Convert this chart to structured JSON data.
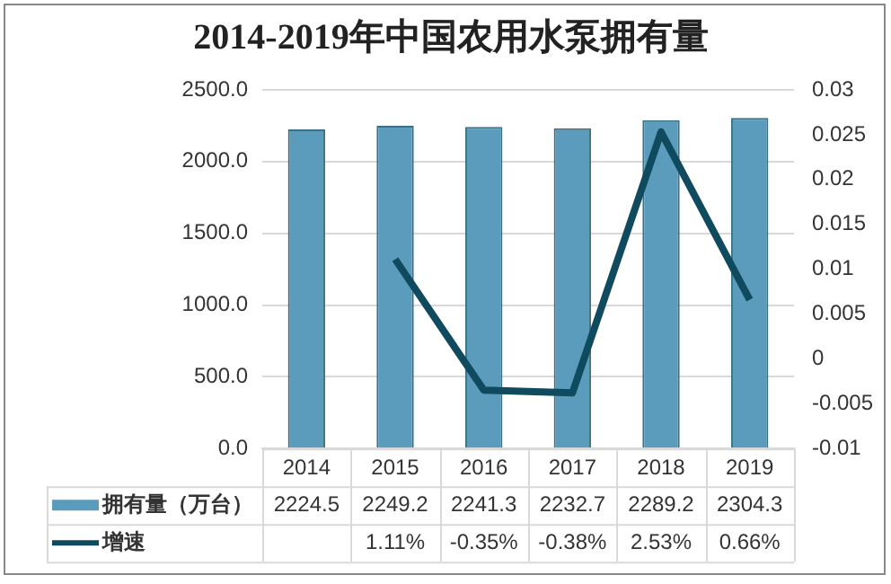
{
  "chart_data": {
    "type": "bar",
    "title": "2014-2019年中国农用水泵拥有量",
    "categories": [
      "2014",
      "2015",
      "2016",
      "2017",
      "2018",
      "2019"
    ],
    "series": [
      {
        "name": "拥有量（万台）",
        "color": "#5b9bbb",
        "values": [
          2224.5,
          2249.2,
          2241.3,
          2232.7,
          2289.2,
          2304.3
        ],
        "value_labels": [
          "2224.5",
          "2249.2",
          "2241.3",
          "2232.7",
          "2289.2",
          "2304.3"
        ]
      },
      {
        "name": "增速",
        "type": "line",
        "axis": "y2",
        "color": "#0f4a5e",
        "values": [
          null,
          0.0111,
          -0.0035,
          -0.0038,
          0.0253,
          0.0066
        ],
        "value_labels": [
          null,
          "1.11%",
          "-0.35%",
          "-0.38%",
          "2.53%",
          "0.66%"
        ]
      }
    ],
    "ylim": [
      0,
      2500
    ],
    "yticks": [
      {
        "value": 0,
        "label": "0.0"
      },
      {
        "value": 500,
        "label": "500.0"
      },
      {
        "value": 1000,
        "label": "1000.0"
      },
      {
        "value": 1500,
        "label": "1500.0"
      },
      {
        "value": 2000,
        "label": "2000.0"
      },
      {
        "value": 2500,
        "label": "2500.0"
      }
    ],
    "y2lim": [
      -0.01,
      0.03
    ],
    "y2ticks": [
      -0.01,
      -0.005,
      0,
      0.005,
      0.01,
      0.015,
      0.02,
      0.025,
      0.03
    ],
    "grid": "y",
    "legend": "bottom",
    "marker": "none",
    "line_style": "solid"
  }
}
